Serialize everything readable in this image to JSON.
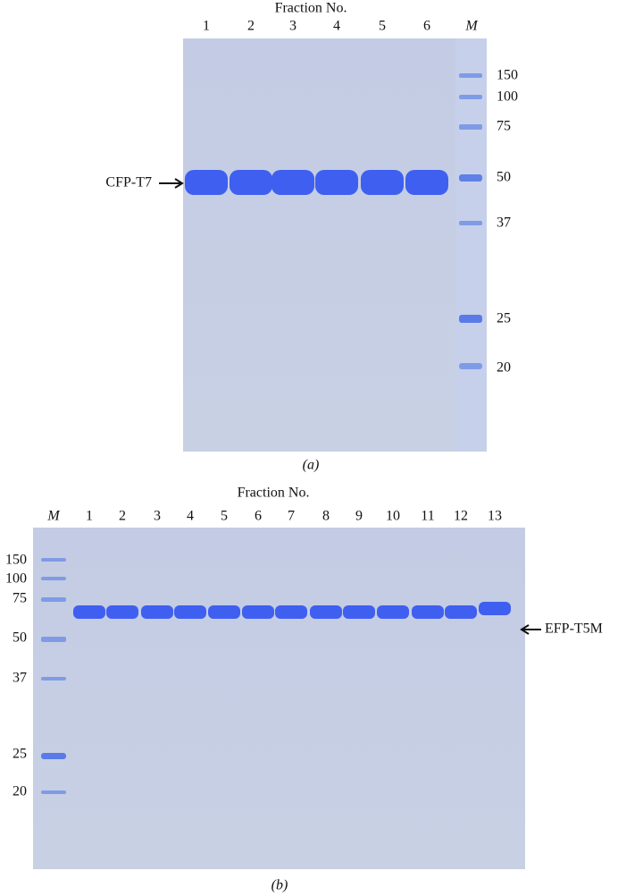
{
  "panel_a": {
    "header": "Fraction No.",
    "lanes": [
      "1",
      "2",
      "3",
      "4",
      "5",
      "6",
      "M"
    ],
    "markers": [
      "150",
      "100",
      "75",
      "50",
      "37",
      "25",
      "20"
    ],
    "band_label": "CFP-T7",
    "caption": "(a)"
  },
  "panel_b": {
    "header": "Fraction No.",
    "lanes": [
      "M",
      "1",
      "2",
      "3",
      "4",
      "5",
      "6",
      "7",
      "8",
      "9",
      "10",
      "11",
      "12",
      "13"
    ],
    "markers": [
      "150",
      "100",
      "75",
      "50",
      "37",
      "25",
      "20"
    ],
    "band_label": "EFP-T5M",
    "caption": "(b)"
  }
}
